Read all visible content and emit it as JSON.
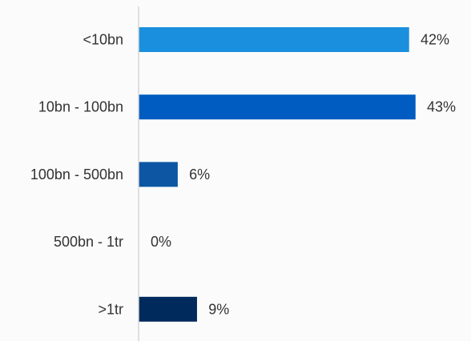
{
  "chart_data": {
    "type": "bar",
    "orientation": "horizontal",
    "categories": [
      "<10bn",
      "10bn - 100bn",
      "100bn - 500bn",
      "500bn - 1tr",
      ">1tr"
    ],
    "values": [
      42,
      43,
      6,
      0,
      9
    ],
    "value_labels": [
      "42%",
      "43%",
      "6%",
      "0%",
      "9%"
    ],
    "unit": "%",
    "xlim": [
      0,
      43
    ],
    "grid": false,
    "colors": [
      "#1a8fdd",
      "#005cc0",
      "#0c56a3",
      "#0a3f80",
      "#002a5c"
    ],
    "axis_color": "#d6d6d6",
    "text_color": "#333333"
  }
}
